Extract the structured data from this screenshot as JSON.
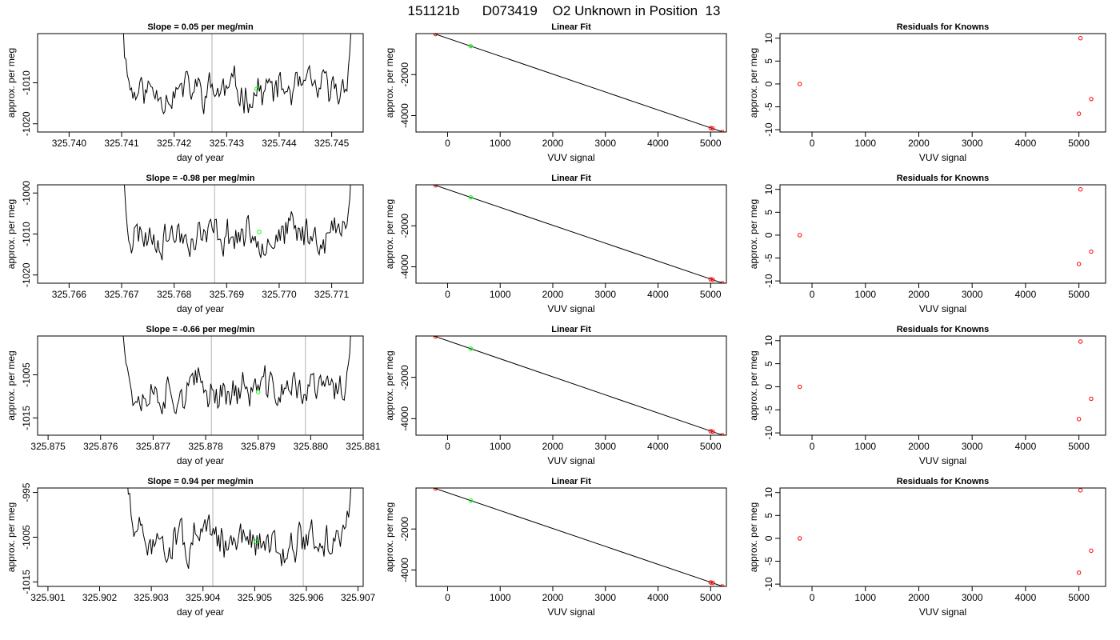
{
  "figure": {
    "main_title": "151121b      D073419    O2 Unknown in Position  13",
    "colors": {
      "trace": "#000000",
      "marker_green": "#00ff00",
      "marker_red": "#ff0000",
      "vline": "#bebebe",
      "box": "#000000"
    }
  },
  "chart_data": [
    {
      "panel": "row1-time-series",
      "type": "line",
      "title": "Slope =  0.05  per meg/min",
      "xlabel": "day of year",
      "ylabel": "approx. per meg",
      "xlim": [
        325.7394,
        325.7456
      ],
      "ylim": [
        -1022,
        -998
      ],
      "xticks": [
        325.74,
        325.741,
        325.742,
        325.743,
        325.744,
        325.745
      ],
      "xtick_labels": [
        "325.740",
        "325.741",
        "325.742",
        "325.743",
        "325.744",
        "325.745"
      ],
      "yticks": [
        -1020,
        -1010
      ],
      "ytick_labels": [
        "-1020",
        "-1010"
      ],
      "trace_x_range": [
        325.74095,
        325.74545
      ],
      "trace_level": -1012,
      "trace_noise": 2.2,
      "seed": 11,
      "vlines": [
        325.74272,
        325.74446
      ],
      "green_point": {
        "x": 325.74357,
        "y": -1011.5
      }
    },
    {
      "panel": "row1-linear-fit",
      "type": "scatter",
      "title": "Linear Fit",
      "xlabel": "VUV signal",
      "ylabel": "approx. per meg",
      "xlim": [
        -600,
        5300
      ],
      "ylim": [
        -4800,
        0
      ],
      "xticks": [
        0,
        1000,
        2000,
        3000,
        4000,
        5000
      ],
      "xtick_labels": [
        "0",
        "1000",
        "2000",
        "3000",
        "4000",
        "5000"
      ],
      "yticks": [
        -4000,
        -2000
      ],
      "ytick_labels": [
        "-4000",
        "-2000"
      ],
      "fit_line": {
        "x": [
          -500,
          5230
        ],
        "y": [
          209,
          -4798
        ]
      },
      "red_points": [
        {
          "x": -230,
          "y": -24
        },
        {
          "x": 5000,
          "y": -4606
        },
        {
          "x": 5040,
          "y": -4628
        },
        {
          "x": 5220,
          "y": -4798
        }
      ],
      "green_points": [
        {
          "x": 440,
          "y": -612
        }
      ]
    },
    {
      "panel": "row1-residuals",
      "type": "scatter",
      "title": "Residuals for Knowns",
      "xlabel": "VUV signal",
      "ylabel": "approx. per meg",
      "xlim": [
        -600,
        5500
      ],
      "ylim": [
        -10.5,
        11
      ],
      "xticks": [
        0,
        1000,
        2000,
        3000,
        4000,
        5000
      ],
      "xtick_labels": [
        "0",
        "1000",
        "2000",
        "3000",
        "4000",
        "5000"
      ],
      "yticks": [
        -10,
        -5,
        0,
        5,
        10
      ],
      "ytick_labels": [
        "-10",
        "-5",
        "0",
        "5",
        "10"
      ],
      "red_points": [
        {
          "x": -230,
          "y": 0
        },
        {
          "x": 5030,
          "y": 10
        },
        {
          "x": 5000,
          "y": -6.5
        },
        {
          "x": 5230,
          "y": -3.3
        }
      ]
    },
    {
      "panel": "row2-time-series",
      "type": "line",
      "title": "Slope =  -0.98  per meg/min",
      "xlabel": "day of year",
      "ylabel": "approx. per meg",
      "xlim": [
        325.7654,
        325.7716
      ],
      "ylim": [
        -1022,
        -998
      ],
      "xticks": [
        325.766,
        325.767,
        325.768,
        325.769,
        325.77,
        325.771
      ],
      "xtick_labels": [
        "325.766",
        "325.767",
        "325.768",
        "325.769",
        "325.770",
        "325.771"
      ],
      "yticks": [
        -1020,
        -1010,
        -1000
      ],
      "ytick_labels": [
        "-1020",
        "-1010",
        "-1000"
      ],
      "trace_x_range": [
        325.76695,
        325.77145
      ],
      "trace_level": -1010,
      "trace_noise": 2.2,
      "seed": 23,
      "vlines": [
        325.76877,
        325.7705
      ],
      "green_point": {
        "x": 325.76962,
        "y": -1009.5
      }
    },
    {
      "panel": "row2-linear-fit",
      "type": "scatter",
      "title": "Linear Fit",
      "xlabel": "VUV signal",
      "ylabel": "approx. per meg",
      "xlim": [
        -600,
        5300
      ],
      "ylim": [
        -4800,
        0
      ],
      "xticks": [
        0,
        1000,
        2000,
        3000,
        4000,
        5000
      ],
      "xtick_labels": [
        "0",
        "1000",
        "2000",
        "3000",
        "4000",
        "5000"
      ],
      "yticks": [
        -4000,
        -2000
      ],
      "ytick_labels": [
        "-4000",
        "-2000"
      ],
      "fit_line": {
        "x": [
          -500,
          5230
        ],
        "y": [
          209,
          -4798
        ]
      },
      "red_points": [
        {
          "x": -230,
          "y": -24
        },
        {
          "x": 5000,
          "y": -4606
        },
        {
          "x": 5040,
          "y": -4628
        },
        {
          "x": 5220,
          "y": -4798
        }
      ],
      "green_points": [
        {
          "x": 440,
          "y": -612
        }
      ]
    },
    {
      "panel": "row2-residuals",
      "type": "scatter",
      "title": "Residuals for Knowns",
      "xlabel": "VUV signal",
      "ylabel": "approx. per meg",
      "xlim": [
        -600,
        5500
      ],
      "ylim": [
        -10.5,
        11
      ],
      "xticks": [
        0,
        1000,
        2000,
        3000,
        4000,
        5000
      ],
      "xtick_labels": [
        "0",
        "1000",
        "2000",
        "3000",
        "4000",
        "5000"
      ],
      "yticks": [
        -10,
        -5,
        0,
        5,
        10
      ],
      "ytick_labels": [
        "-10",
        "-5",
        "0",
        "5",
        "10"
      ],
      "red_points": [
        {
          "x": -230,
          "y": 0
        },
        {
          "x": 5030,
          "y": 10
        },
        {
          "x": 5000,
          "y": -6.3
        },
        {
          "x": 5230,
          "y": -3.6
        }
      ]
    },
    {
      "panel": "row3-time-series",
      "type": "line",
      "title": "Slope =  -0.66  per meg/min",
      "xlabel": "day of year",
      "ylabel": "approx. per meg",
      "xlim": [
        325.8748,
        325.881
      ],
      "ylim": [
        -1019,
        -996
      ],
      "xticks": [
        325.875,
        325.876,
        325.877,
        325.878,
        325.879,
        325.88,
        325.881
      ],
      "xtick_labels": [
        "325.875",
        "325.876",
        "325.877",
        "325.878",
        "325.879",
        "325.880",
        "325.881"
      ],
      "yticks": [
        -1015,
        -1005
      ],
      "ytick_labels": [
        "-1015",
        "-1005"
      ],
      "trace_x_range": [
        325.87635,
        325.88085
      ],
      "trace_level": -1008.5,
      "trace_noise": 2.2,
      "seed": 37,
      "vlines": [
        325.87811,
        325.8799
      ],
      "green_point": {
        "x": 325.879,
        "y": -1009
      }
    },
    {
      "panel": "row3-linear-fit",
      "type": "scatter",
      "title": "Linear Fit",
      "xlabel": "VUV signal",
      "ylabel": "approx. per meg",
      "xlim": [
        -600,
        5300
      ],
      "ylim": [
        -4800,
        0
      ],
      "xticks": [
        0,
        1000,
        2000,
        3000,
        4000,
        5000
      ],
      "xtick_labels": [
        "0",
        "1000",
        "2000",
        "3000",
        "4000",
        "5000"
      ],
      "yticks": [
        -4000,
        -2000
      ],
      "ytick_labels": [
        "-4000",
        "-2000"
      ],
      "fit_line": {
        "x": [
          -500,
          5230
        ],
        "y": [
          209,
          -4798
        ]
      },
      "red_points": [
        {
          "x": -230,
          "y": -24
        },
        {
          "x": 5000,
          "y": -4606
        },
        {
          "x": 5040,
          "y": -4628
        },
        {
          "x": 5220,
          "y": -4798
        }
      ],
      "green_points": [
        {
          "x": 440,
          "y": -612
        }
      ]
    },
    {
      "panel": "row3-residuals",
      "type": "scatter",
      "title": "Residuals for Knowns",
      "xlabel": "VUV signal",
      "ylabel": "approx. per meg",
      "xlim": [
        -600,
        5500
      ],
      "ylim": [
        -10.5,
        11
      ],
      "xticks": [
        0,
        1000,
        2000,
        3000,
        4000,
        5000
      ],
      "xtick_labels": [
        "0",
        "1000",
        "2000",
        "3000",
        "4000",
        "5000"
      ],
      "yticks": [
        -10,
        -5,
        0,
        5,
        10
      ],
      "ytick_labels": [
        "-10",
        "-5",
        "0",
        "5",
        "10"
      ],
      "red_points": [
        {
          "x": -230,
          "y": 0
        },
        {
          "x": 5030,
          "y": 9.8
        },
        {
          "x": 5000,
          "y": -7
        },
        {
          "x": 5230,
          "y": -2.6
        }
      ]
    },
    {
      "panel": "row4-time-series",
      "type": "line",
      "title": "Slope =  0.94  per meg/min",
      "xlabel": "day of year",
      "ylabel": "approx. per meg",
      "xlim": [
        325.9008,
        325.9071
      ],
      "ylim": [
        -1016,
        -994
      ],
      "xticks": [
        325.901,
        325.902,
        325.903,
        325.904,
        325.905,
        325.906,
        325.907
      ],
      "xtick_labels": [
        "325.901",
        "325.902",
        "325.903",
        "325.904",
        "325.905",
        "325.906",
        "325.907"
      ],
      "yticks": [
        -1015,
        -1005,
        -995
      ],
      "ytick_labels": [
        "-1015",
        "-1005",
        "-995"
      ],
      "trace_x_range": [
        325.90245,
        325.90695
      ],
      "trace_level": -1006,
      "trace_noise": 2.2,
      "seed": 51,
      "vlines": [
        325.90419,
        325.90594
      ],
      "green_point": {
        "x": 325.90503,
        "y": -1006
      }
    },
    {
      "panel": "row4-linear-fit",
      "type": "scatter",
      "title": "Linear Fit",
      "xlabel": "VUV signal",
      "ylabel": "approx. per meg",
      "xlim": [
        -600,
        5300
      ],
      "ylim": [
        -4800,
        0
      ],
      "xticks": [
        0,
        1000,
        2000,
        3000,
        4000,
        5000
      ],
      "xtick_labels": [
        "0",
        "1000",
        "2000",
        "3000",
        "4000",
        "5000"
      ],
      "yticks": [
        -4000,
        -2000
      ],
      "ytick_labels": [
        "-4000",
        "-2000"
      ],
      "fit_line": {
        "x": [
          -500,
          5230
        ],
        "y": [
          209,
          -4798
        ]
      },
      "red_points": [
        {
          "x": -230,
          "y": -24
        },
        {
          "x": 5000,
          "y": -4606
        },
        {
          "x": 5040,
          "y": -4628
        },
        {
          "x": 5220,
          "y": -4798
        }
      ],
      "green_points": [
        {
          "x": 440,
          "y": -612
        }
      ]
    },
    {
      "panel": "row4-residuals",
      "type": "scatter",
      "title": "Residuals for Knowns",
      "xlabel": "VUV signal",
      "ylabel": "approx. per meg",
      "xlim": [
        -600,
        5500
      ],
      "ylim": [
        -10.5,
        11
      ],
      "xticks": [
        0,
        1000,
        2000,
        3000,
        4000,
        5000
      ],
      "xtick_labels": [
        "0",
        "1000",
        "2000",
        "3000",
        "4000",
        "5000"
      ],
      "yticks": [
        -10,
        -5,
        0,
        5,
        10
      ],
      "ytick_labels": [
        "-10",
        "-5",
        "0",
        "5",
        "10"
      ],
      "red_points": [
        {
          "x": -230,
          "y": 0
        },
        {
          "x": 5030,
          "y": 10.5
        },
        {
          "x": 5000,
          "y": -7.5
        },
        {
          "x": 5230,
          "y": -2.7
        }
      ]
    }
  ]
}
